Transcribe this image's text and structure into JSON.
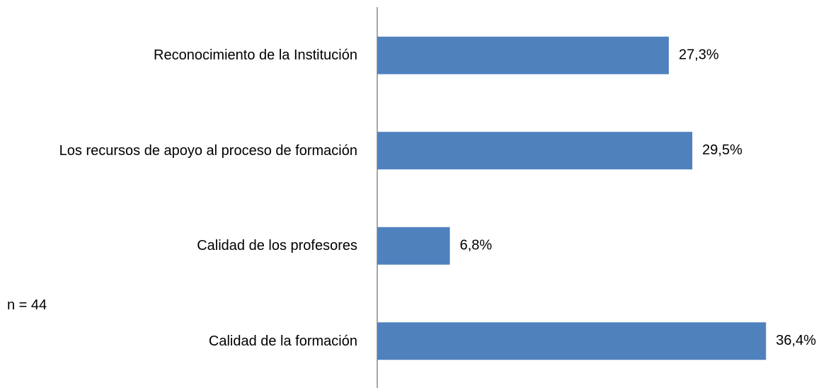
{
  "chart_data": {
    "type": "bar",
    "orientation": "horizontal",
    "categories": [
      "Reconocimiento de la Institución",
      "Los recursos de apoyo al proceso de formación",
      "Calidad de los profesores",
      "Calidad de la formación"
    ],
    "values": [
      27.3,
      29.5,
      6.8,
      36.4
    ],
    "value_labels": [
      "27,3%",
      "29,5%",
      "6,8%",
      "36,4%"
    ],
    "color": "#4f81bd",
    "annotation": "n = 44"
  }
}
